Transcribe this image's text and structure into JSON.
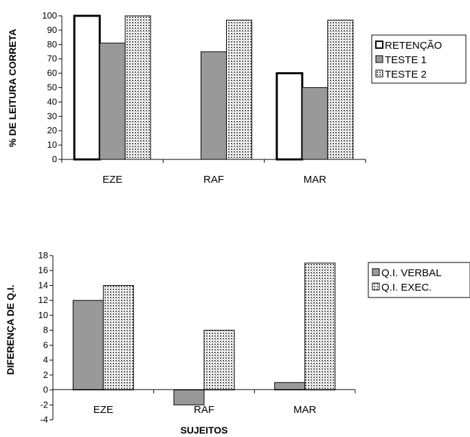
{
  "patterns": {
    "dots": "#555555"
  },
  "colors": {
    "teste1": "#999999",
    "verbal": "#999999",
    "white": "#ffffff",
    "outline": "#000000"
  },
  "chart_data": [
    {
      "type": "bar",
      "title": "",
      "xlabel": "",
      "ylabel": "% DE LEITURA CORRETA",
      "ylim": [
        0,
        100
      ],
      "ytick_step": 10,
      "categories": [
        "EZE",
        "RAF",
        "MAR"
      ],
      "series": [
        {
          "name": "RETENÇÃO",
          "style": "outline",
          "values": [
            100,
            null,
            60
          ]
        },
        {
          "name": "TESTE 1",
          "style": "gray",
          "values": [
            81,
            75,
            50
          ]
        },
        {
          "name": "TESTE 2",
          "style": "dotted",
          "values": [
            100,
            97,
            97
          ]
        }
      ],
      "legend": "right",
      "grid": false
    },
    {
      "type": "bar",
      "title": "",
      "xlabel": "SUJEITOS",
      "ylabel": "DIFERENÇA DE Q.I.",
      "ylim": [
        -4,
        18
      ],
      "ytick_step": 2,
      "categories": [
        "EZE",
        "RAF",
        "MAR"
      ],
      "series": [
        {
          "name": "Q.I. VERBAL",
          "style": "gray",
          "values": [
            12,
            -2,
            1
          ]
        },
        {
          "name": "Q.I. EXEC.",
          "style": "dotted",
          "values": [
            14,
            8,
            17
          ]
        }
      ],
      "legend": "right",
      "grid": false
    }
  ]
}
